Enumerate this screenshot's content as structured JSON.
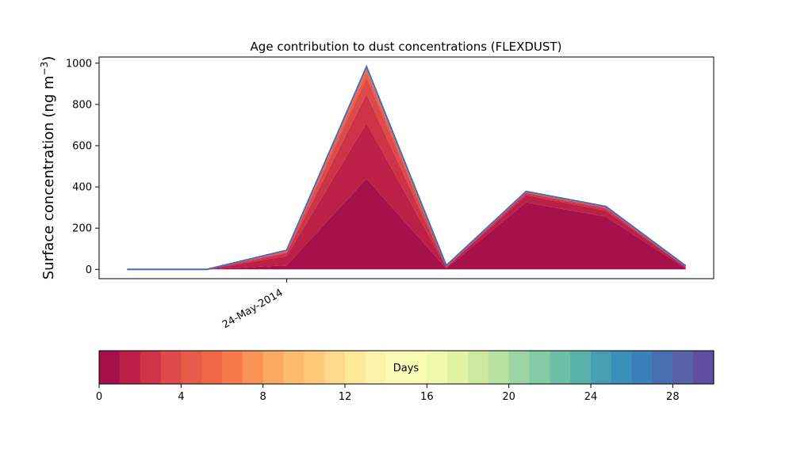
{
  "chart_data": {
    "type": "area",
    "title": "Age contribution to dust concentrations (FLEXDUST)",
    "ylabel": "Surface concentration (ng m",
    "ylabel_sup": "−3",
    "ylabel_close": ")",
    "xlabel": "",
    "x": [
      0,
      1,
      2,
      3,
      4,
      5,
      6,
      7
    ],
    "xlim": [
      -0.35,
      7.35
    ],
    "xtick_positions": [
      2
    ],
    "xtick_labels": [
      "24-May-2014"
    ],
    "ylim": [
      -45,
      1030
    ],
    "yticks": [
      0,
      200,
      400,
      600,
      800,
      1000
    ],
    "ytick_labels": [
      "0",
      "200",
      "400",
      "600",
      "800",
      "1000"
    ],
    "grid": false,
    "series": [
      {
        "values": [
          0,
          0,
          20,
          440,
          5,
          325,
          255,
          5
        ]
      },
      {
        "values": [
          0,
          0,
          45,
          270,
          5,
          35,
          30,
          5
        ]
      },
      {
        "values": [
          0,
          0,
          15,
          140,
          3,
          10,
          10,
          2
        ]
      },
      {
        "values": [
          0,
          0,
          5,
          80,
          2,
          3,
          5,
          1
        ]
      },
      {
        "values": [
          0,
          0,
          3,
          25,
          1,
          2,
          2,
          1
        ]
      },
      {
        "values": [
          0,
          0,
          2,
          15,
          1,
          1,
          1,
          1
        ]
      },
      {
        "values": [
          0,
          0,
          1,
          5,
          1,
          1,
          1,
          1
        ]
      },
      {
        "values": [
          0,
          0,
          1,
          3,
          1,
          1,
          1,
          1
        ]
      },
      {
        "values": [
          0,
          0,
          1,
          2,
          0,
          0,
          0,
          0
        ]
      },
      {
        "values": [
          0,
          0,
          0,
          1,
          0,
          0,
          0,
          0
        ]
      },
      {
        "values": [
          0,
          0,
          0,
          1,
          0,
          0,
          0,
          0
        ]
      },
      {
        "values": [
          0,
          0,
          0,
          1,
          0,
          0,
          0,
          0
        ]
      }
    ],
    "total_line_color": "#4a6ab8",
    "colorbar": {
      "label": "Days",
      "range": [
        0,
        30
      ],
      "ticks": [
        0,
        4,
        8,
        12,
        16,
        20,
        24,
        28
      ],
      "tick_labels": [
        "0",
        "4",
        "8",
        "12",
        "16",
        "20",
        "24",
        "28"
      ],
      "colors": [
        "#a6114b",
        "#bb2146",
        "#cc3347",
        "#dc4a4a",
        "#e85a4a",
        "#f06647",
        "#f67b4a",
        "#f99255",
        "#fba862",
        "#fdbc6d",
        "#fecb7b",
        "#fed98a",
        "#fee89a",
        "#fef3aa",
        "#fdfbb8",
        "#f9fcb5",
        "#effaac",
        "#e2f3a2",
        "#cdea9e",
        "#b8e09e",
        "#9dd5a3",
        "#82cba5",
        "#6ebfa8",
        "#59b3ac",
        "#47a0b2",
        "#3990bb",
        "#3a7fb8",
        "#4870b0",
        "#5962a8",
        "#5e4fa2"
      ]
    }
  }
}
